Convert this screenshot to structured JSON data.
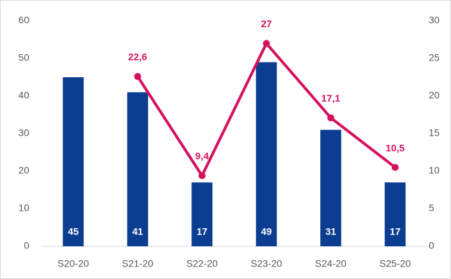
{
  "chart_data": {
    "type": "bar",
    "categories": [
      "S20-20",
      "S21-20",
      "S22-20",
      "S23-20",
      "S24-20",
      "S25-20"
    ],
    "series": [
      {
        "type": "bar",
        "color": "#0b3d91",
        "values": [
          45,
          41,
          17,
          49,
          31,
          17
        ]
      },
      {
        "type": "line",
        "axis": "y2",
        "color": "#d6125f",
        "values": [
          null,
          22.6,
          9.4,
          27,
          17.1,
          10.5
        ],
        "value_labels": [
          null,
          "22,6",
          "9,4",
          "27",
          "17,1",
          "10,5"
        ]
      }
    ],
    "ylim": [
      0,
      60
    ],
    "yticks": [
      0,
      10,
      20,
      30,
      40,
      50,
      60
    ],
    "y2lim": [
      0,
      30
    ],
    "y2ticks": [
      0,
      5,
      10,
      15,
      20,
      25,
      30
    ],
    "grid": false
  }
}
